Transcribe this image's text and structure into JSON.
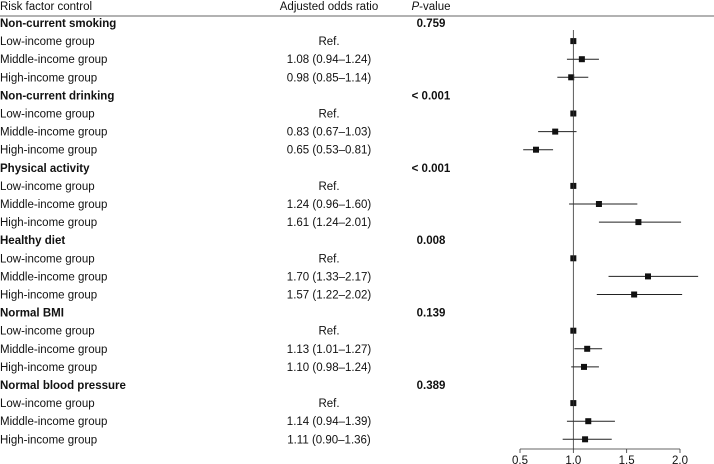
{
  "chart_data": {
    "type": "forest",
    "headers": {
      "factor": "Risk factor control",
      "or": "Adjusted odds ratio",
      "p_italic": "P",
      "p_rest": "-value"
    },
    "x_axis": {
      "min": 0.5,
      "max": 2.0,
      "ticks": [
        "0.5",
        "1.0",
        "1.5",
        "2.0"
      ],
      "reference": 1.0
    },
    "groups": [
      {
        "name": "Non-current smoking",
        "p": "0.759",
        "rows": [
          {
            "label": "Low-income group",
            "or_text": "Ref.",
            "or": 1.0,
            "lo": null,
            "hi": null
          },
          {
            "label": "Middle-income group",
            "or_text": "1.08 (0.94–1.24)",
            "or": 1.08,
            "lo": 0.94,
            "hi": 1.24
          },
          {
            "label": "High-income group",
            "or_text": "0.98 (0.85–1.14)",
            "or": 0.98,
            "lo": 0.85,
            "hi": 1.14
          }
        ]
      },
      {
        "name": "Non-current drinking",
        "p": "< 0.001",
        "rows": [
          {
            "label": "Low-income group",
            "or_text": "Ref.",
            "or": 1.0,
            "lo": null,
            "hi": null
          },
          {
            "label": "Middle-income group",
            "or_text": "0.83 (0.67–1.03)",
            "or": 0.83,
            "lo": 0.67,
            "hi": 1.03
          },
          {
            "label": "High-income group",
            "or_text": "0.65 (0.53–0.81)",
            "or": 0.65,
            "lo": 0.53,
            "hi": 0.81
          }
        ]
      },
      {
        "name": "Physical activity",
        "p": "< 0.001",
        "rows": [
          {
            "label": "Low-income group",
            "or_text": "Ref.",
            "or": 1.0,
            "lo": null,
            "hi": null
          },
          {
            "label": "Middle-income group",
            "or_text": "1.24 (0.96–1.60)",
            "or": 1.24,
            "lo": 0.96,
            "hi": 1.6
          },
          {
            "label": "High-income group",
            "or_text": "1.61 (1.24–2.01)",
            "or": 1.61,
            "lo": 1.24,
            "hi": 2.01
          }
        ]
      },
      {
        "name": "Healthy diet",
        "p": "0.008",
        "rows": [
          {
            "label": "Low-income group",
            "or_text": "Ref.",
            "or": 1.0,
            "lo": null,
            "hi": null
          },
          {
            "label": "Middle-income group",
            "or_text": "1.70 (1.33–2.17)",
            "or": 1.7,
            "lo": 1.33,
            "hi": 2.17
          },
          {
            "label": "High-income group",
            "or_text": "1.57 (1.22–2.02)",
            "or": 1.57,
            "lo": 1.22,
            "hi": 2.02
          }
        ]
      },
      {
        "name": "Normal BMI",
        "p": "0.139",
        "rows": [
          {
            "label": "Low-income group",
            "or_text": "Ref.",
            "or": 1.0,
            "lo": null,
            "hi": null
          },
          {
            "label": "Middle-income group",
            "or_text": "1.13 (1.01–1.27)",
            "or": 1.13,
            "lo": 1.01,
            "hi": 1.27
          },
          {
            "label": "High-income group",
            "or_text": "1.10 (0.98–1.24)",
            "or": 1.1,
            "lo": 0.98,
            "hi": 1.24
          }
        ]
      },
      {
        "name": "Normal blood pressure",
        "p": "0.389",
        "rows": [
          {
            "label": "Low-income group",
            "or_text": "Ref.",
            "or": 1.0,
            "lo": null,
            "hi": null
          },
          {
            "label": "Middle-income group",
            "or_text": "1.14 (0.94–1.39)",
            "or": 1.14,
            "lo": 0.94,
            "hi": 1.39
          },
          {
            "label": "High-income group",
            "or_text": "1.11 (0.90–1.36)",
            "or": 1.11,
            "lo": 0.9,
            "hi": 1.36
          }
        ]
      }
    ]
  }
}
